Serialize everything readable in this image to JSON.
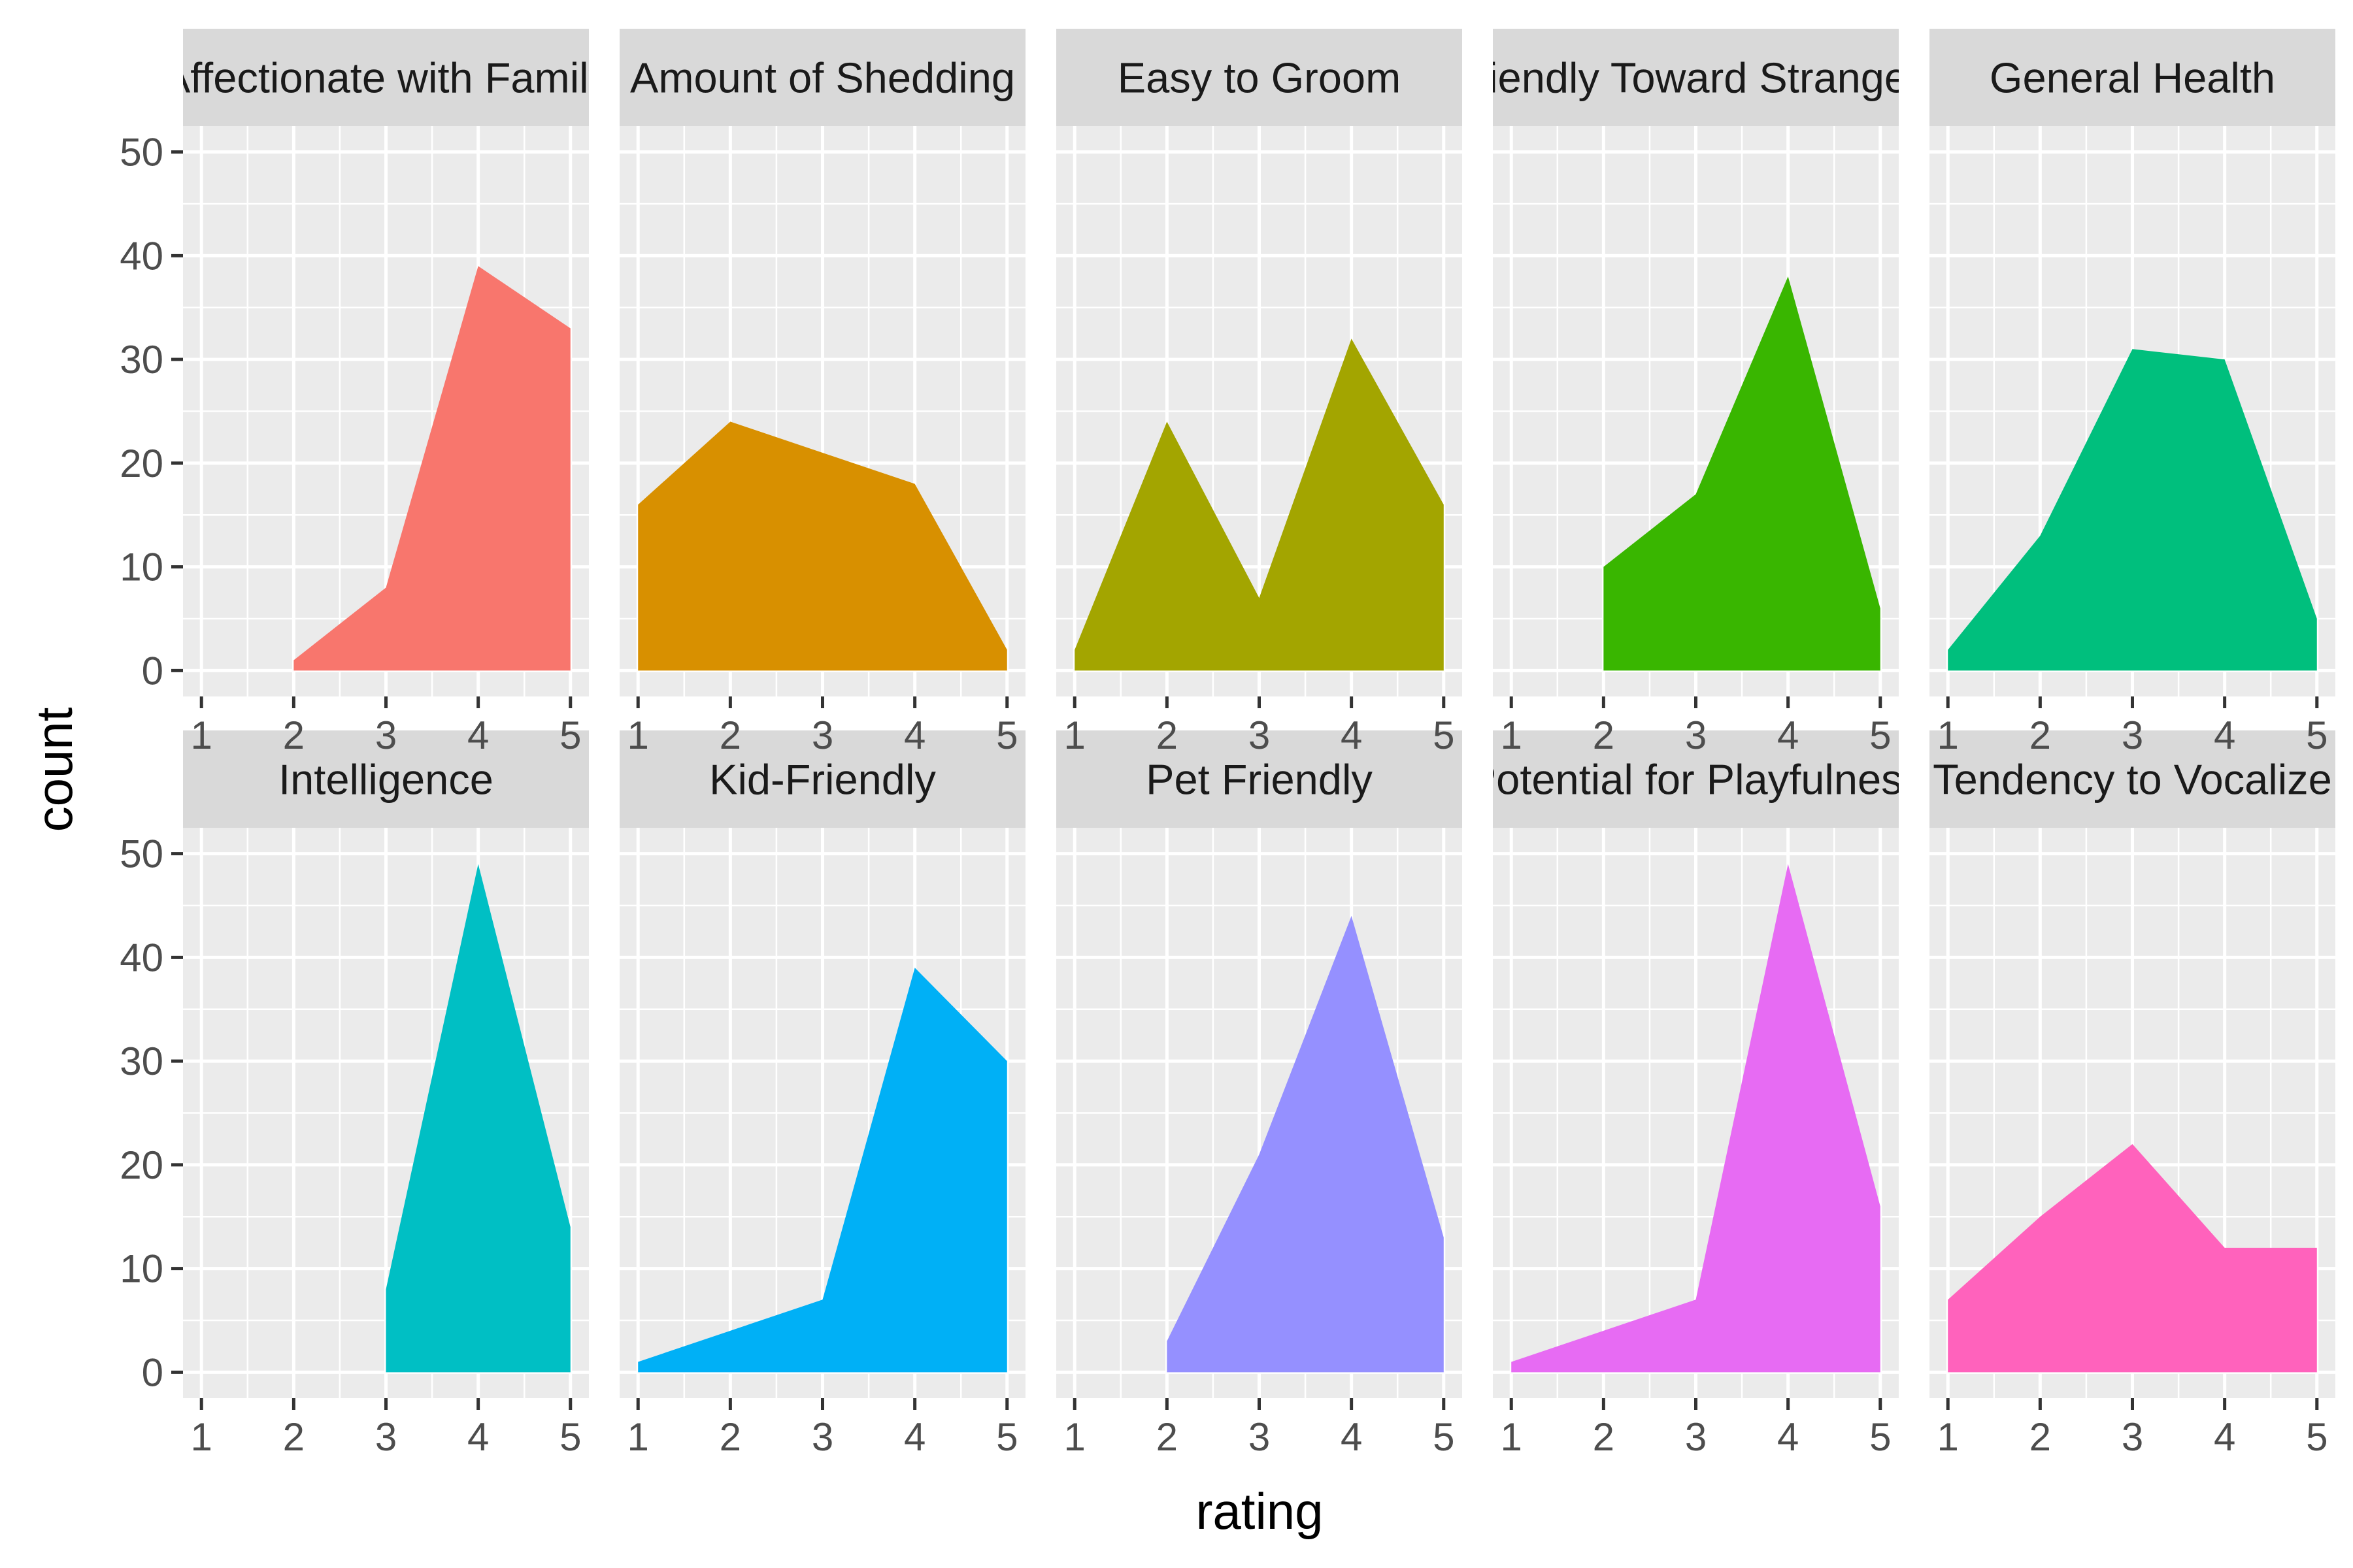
{
  "chart_data": {
    "type": "area",
    "layout": "faceted small multiples, 2 rows x 5 columns, shared axes",
    "xlabel": "rating",
    "ylabel": "count",
    "x": [
      1,
      2,
      3,
      4,
      5
    ],
    "xticks": [
      "1",
      "2",
      "3",
      "4",
      "5"
    ],
    "yticks": [
      "0",
      "10",
      "20",
      "30",
      "40",
      "50"
    ],
    "xlim": [
      0.8,
      5.2
    ],
    "ylim": [
      -2.5,
      52.5
    ],
    "grid": true,
    "legend": "none",
    "facets": [
      {
        "title": "Affectionate with Family",
        "color": "#F8766D",
        "x": [
          2,
          3,
          4,
          5
        ],
        "values": [
          1,
          8,
          39,
          33
        ]
      },
      {
        "title": "Amount of Shedding",
        "color": "#D89000",
        "x": [
          1,
          2,
          3,
          4,
          5
        ],
        "values": [
          16,
          24,
          21,
          18,
          2
        ]
      },
      {
        "title": "Easy to Groom",
        "color": "#A3A500",
        "x": [
          1,
          2,
          3,
          4,
          5
        ],
        "values": [
          2,
          24,
          7,
          32,
          16
        ]
      },
      {
        "title": "Friendly Toward Strangers",
        "color": "#39B600",
        "x": [
          2,
          3,
          4,
          5
        ],
        "values": [
          10,
          17,
          38,
          6
        ]
      },
      {
        "title": "General Health",
        "color": "#00BF7D",
        "x": [
          1,
          2,
          3,
          4,
          5
        ],
        "values": [
          2,
          13,
          31,
          30,
          5
        ]
      },
      {
        "title": "Intelligence",
        "color": "#00BFC4",
        "x": [
          3,
          4,
          5
        ],
        "values": [
          8,
          49,
          14
        ]
      },
      {
        "title": "Kid-Friendly",
        "color": "#00B0F6",
        "x": [
          1,
          2,
          3,
          4,
          5
        ],
        "values": [
          1,
          4,
          7,
          39,
          30
        ]
      },
      {
        "title": "Pet Friendly",
        "color": "#9590FF",
        "x": [
          2,
          3,
          4,
          5
        ],
        "values": [
          3,
          21,
          44,
          13
        ]
      },
      {
        "title": "Potential for Playfulness",
        "color": "#E76BF3",
        "x": [
          1,
          2,
          3,
          4,
          5
        ],
        "values": [
          1,
          4,
          7,
          49,
          16
        ]
      },
      {
        "title": "Tendency to Vocalize",
        "color": "#FF62BC",
        "x": [
          1,
          2,
          3,
          4,
          5
        ],
        "values": [
          7,
          15,
          22,
          12,
          12
        ]
      }
    ]
  }
}
